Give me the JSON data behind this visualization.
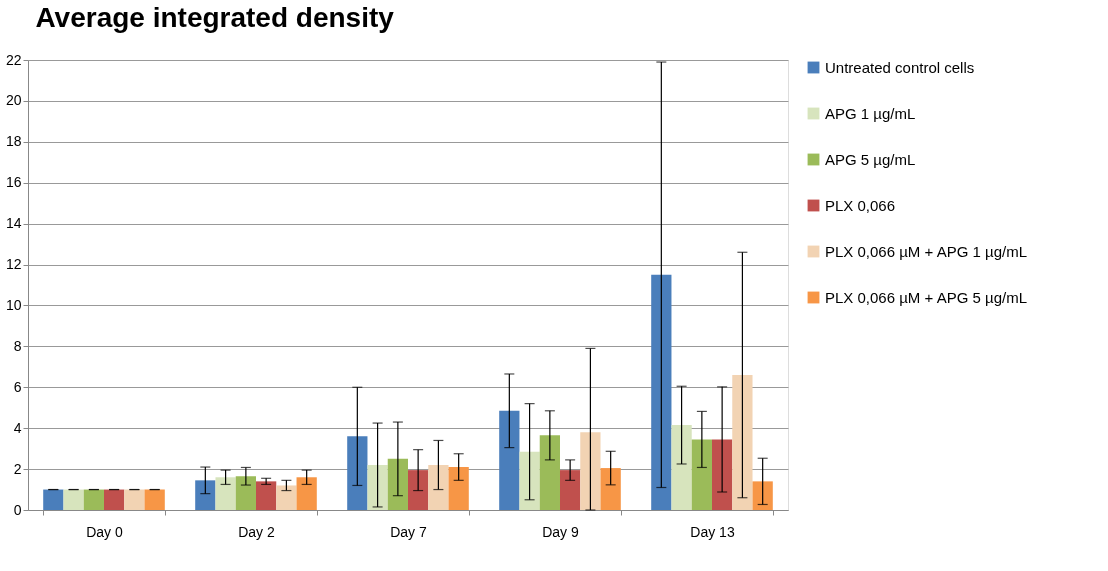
{
  "chart_data": {
    "type": "bar",
    "title": "Average integrated density",
    "categories": [
      "Day 0",
      "Day 2",
      "Day 7",
      "Day 9",
      "Day 13"
    ],
    "series": [
      {
        "name": "Untreated control cells",
        "color": "#4a7ebb",
        "values": [
          1,
          1.45,
          3.6,
          4.85,
          11.5
        ],
        "errors": [
          0,
          0.65,
          2.4,
          1.8,
          10.4
        ]
      },
      {
        "name": "APG 1 µg/mL",
        "color": "#d7e4bd",
        "values": [
          1,
          1.6,
          2.2,
          2.85,
          4.15
        ],
        "errors": [
          0,
          0.35,
          2.05,
          2.35,
          1.9
        ]
      },
      {
        "name": "APG 5 µg/mL",
        "color": "#9bbb59",
        "values": [
          1,
          1.65,
          2.5,
          3.65,
          3.45
        ],
        "errors": [
          0,
          0.43,
          1.8,
          1.2,
          1.37
        ]
      },
      {
        "name": "PLX 0,066",
        "color": "#c0504d",
        "values": [
          1,
          1.4,
          1.95,
          1.95,
          3.45
        ],
        "errors": [
          0,
          0.15,
          1.0,
          0.5,
          2.57
        ]
      },
      {
        "name": "PLX 0,066 µM + APG 1 µg/mL",
        "color": "#f2d3b3",
        "values": [
          1,
          1.2,
          2.2,
          3.8,
          6.6
        ],
        "errors": [
          0,
          0.25,
          1.2,
          [
            0,
            7.9
          ],
          6.0
        ]
      },
      {
        "name": "PLX 0,066 µM + APG 5 µg/mL",
        "color": "#f79646",
        "values": [
          1,
          1.6,
          2.1,
          2.05,
          1.4
        ],
        "errors": [
          0,
          0.35,
          0.65,
          0.82,
          1.13
        ]
      }
    ],
    "ylim": [
      0,
      22
    ],
    "yticks": [
      0,
      2,
      4,
      6,
      8,
      10,
      12,
      14,
      16,
      18,
      20,
      22
    ],
    "grid": "y",
    "legend": "right"
  }
}
